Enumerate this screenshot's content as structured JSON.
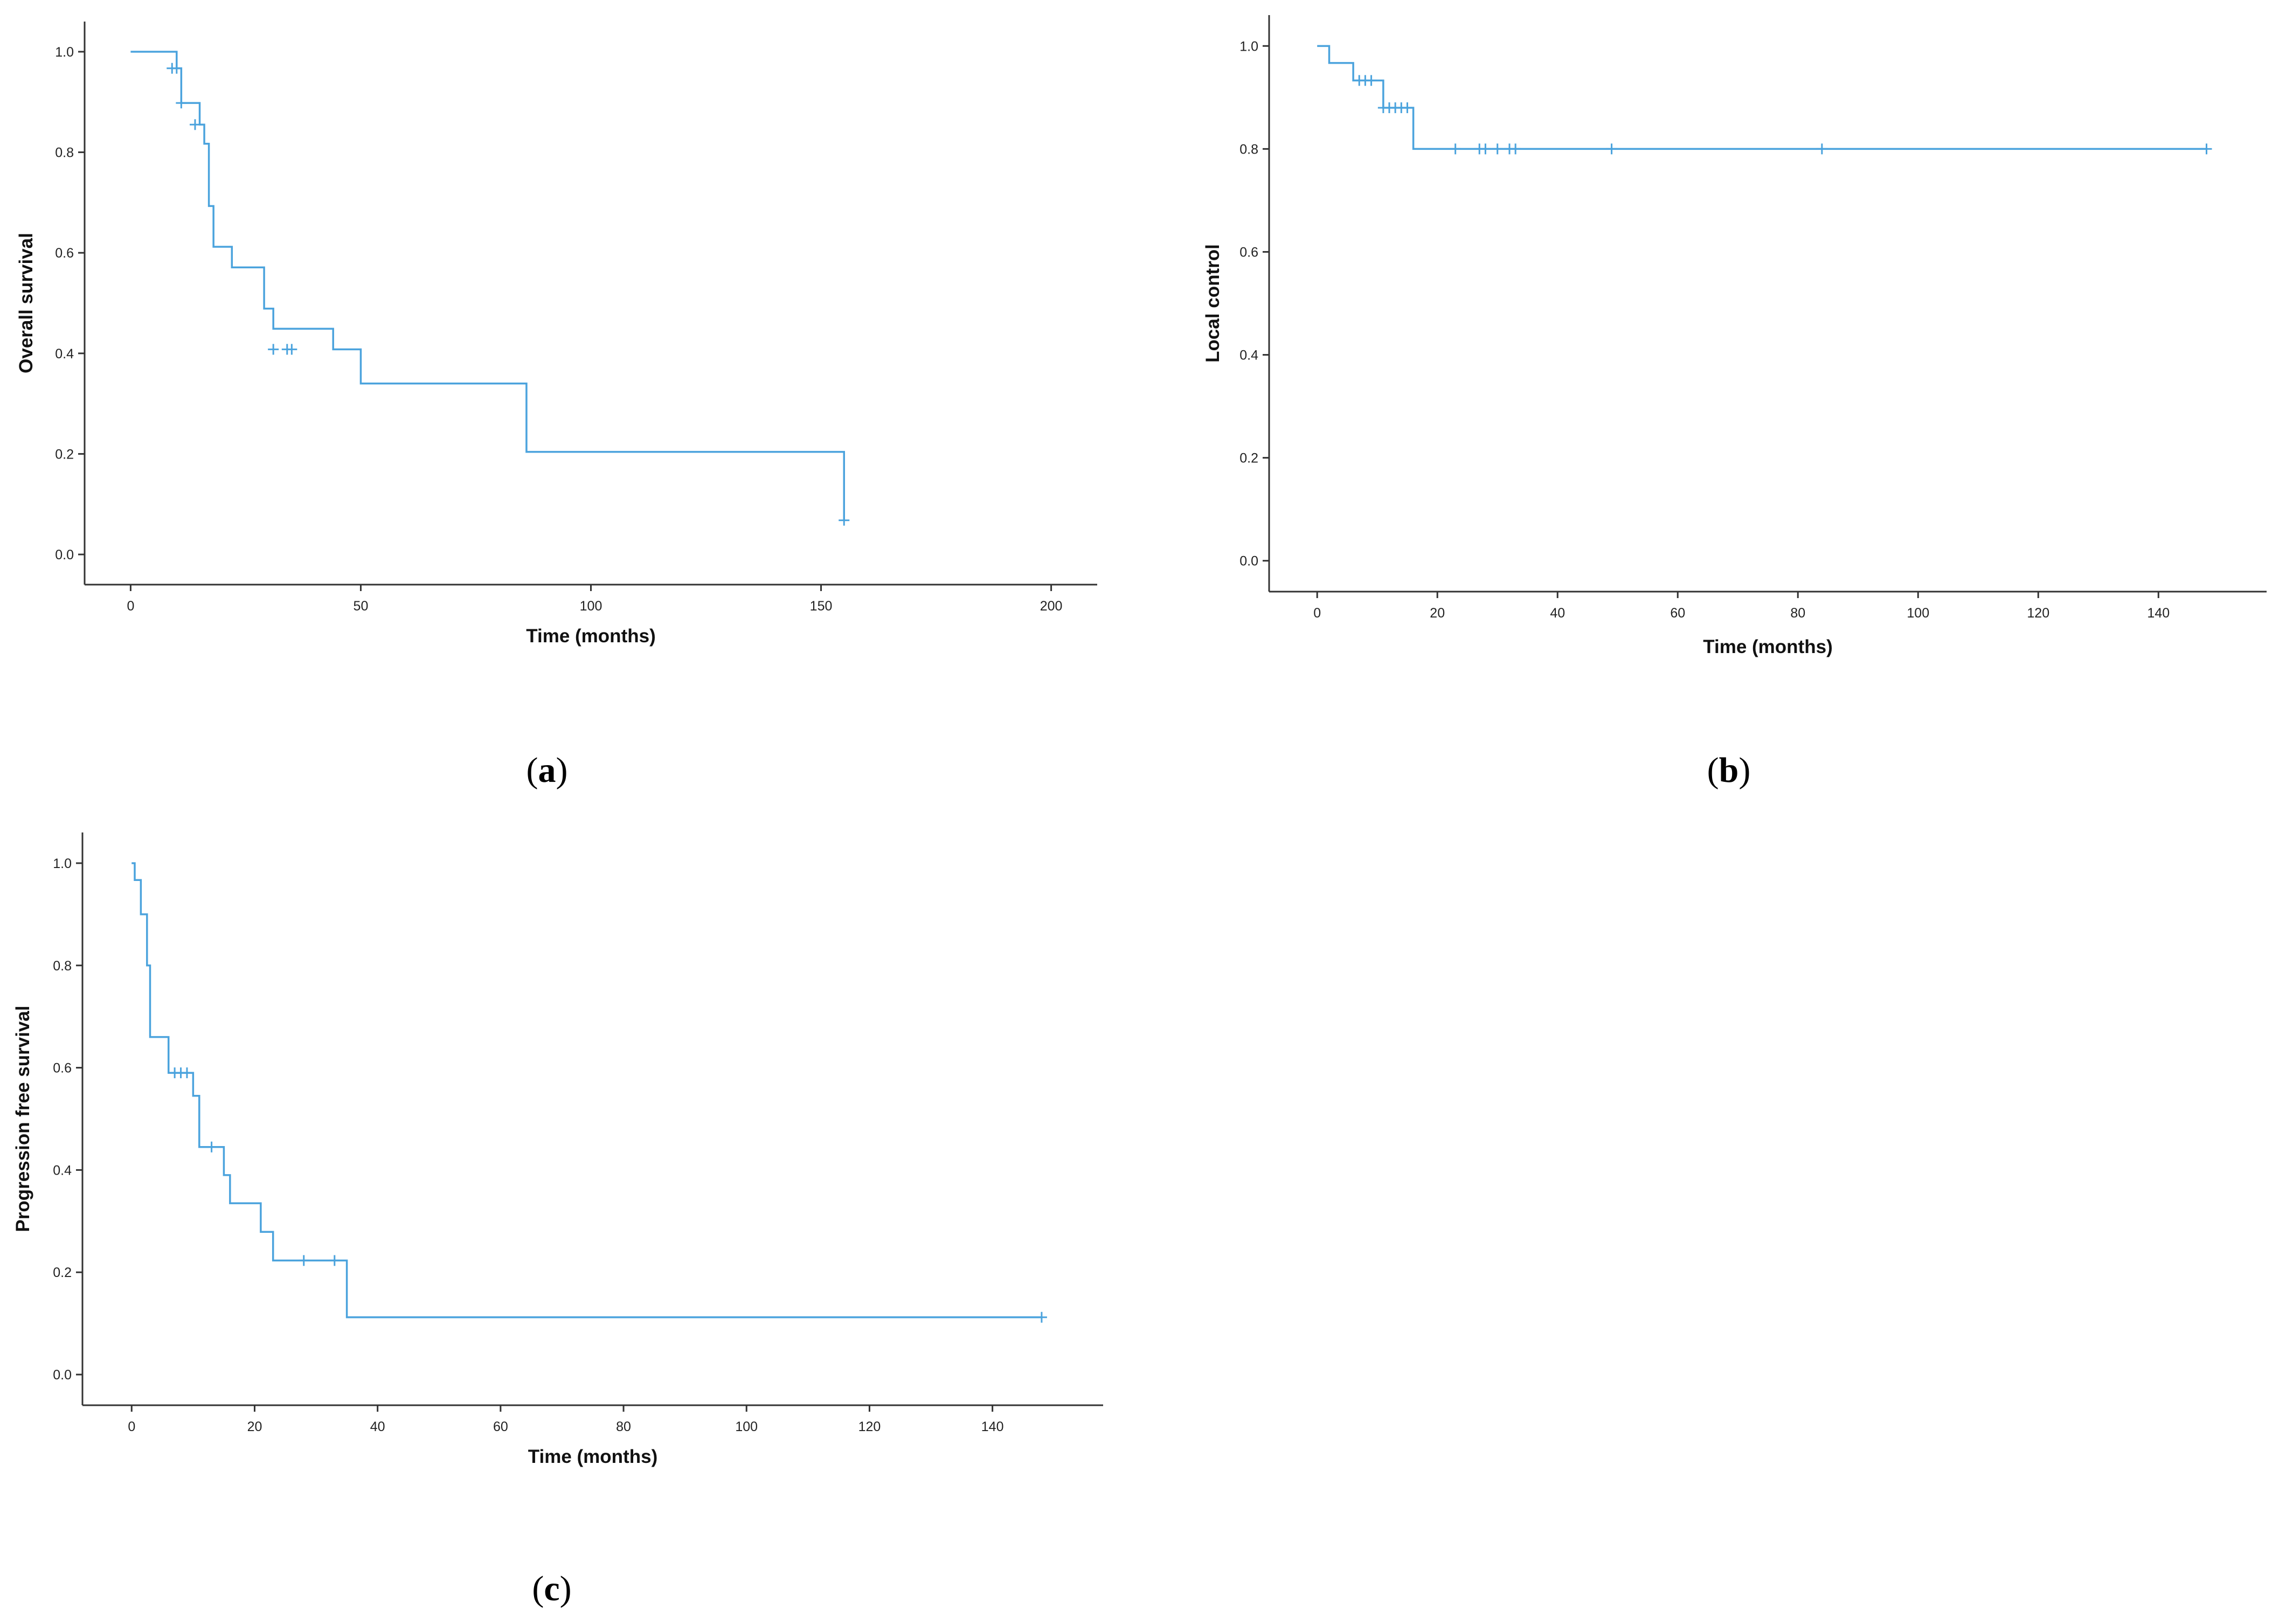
{
  "style": {
    "curve_color": "#4ba3dd",
    "axis_color": "#333333",
    "background": "#ffffff"
  },
  "chart_data": [
    {
      "id": "a",
      "type": "line",
      "panel_label": "a",
      "xlabel": "Time (months)",
      "ylabel": "Overall survival",
      "xlim": [
        -10,
        210
      ],
      "ylim": [
        -0.06,
        1.06
      ],
      "xticks": [
        0,
        50,
        100,
        150,
        200
      ],
      "xtick_labels": [
        "0",
        "50",
        "100",
        "150",
        "200"
      ],
      "yticks": [
        0,
        0.2,
        0.4,
        0.6,
        0.8,
        1.0
      ],
      "ytick_labels": [
        "0.0",
        "0.2",
        "0.4",
        "0.6",
        "0.8",
        "1.0"
      ],
      "grid": false,
      "legend": "none",
      "series": [
        {
          "step_times": [
            0,
            10,
            11,
            15,
            16,
            17,
            18,
            22,
            29,
            31,
            44,
            50,
            86,
            155
          ],
          "step_values": [
            1.0,
            0.967,
            0.898,
            0.855,
            0.817,
            0.693,
            0.612,
            0.571,
            0.489,
            0.449,
            0.408,
            0.34,
            0.204,
            0.068
          ],
          "censored": [
            [
              9,
              0.967
            ],
            [
              10,
              0.967
            ],
            [
              11,
              0.898
            ],
            [
              14,
              0.855
            ],
            [
              31,
              0.408
            ],
            [
              34,
              0.408
            ],
            [
              35,
              0.408
            ],
            [
              155,
              0.068
            ]
          ]
        }
      ]
    },
    {
      "id": "b",
      "type": "line",
      "panel_label": "b",
      "xlabel": "Time (months)",
      "ylabel": "Local control",
      "xlim": [
        -8,
        158
      ],
      "ylim": [
        -0.06,
        1.06
      ],
      "xticks": [
        0,
        20,
        40,
        60,
        80,
        100,
        120,
        140
      ],
      "xtick_labels": [
        "0",
        "20",
        "40",
        "60",
        "80",
        "100",
        "120",
        "140"
      ],
      "yticks": [
        0,
        0.2,
        0.4,
        0.6,
        0.8,
        1.0
      ],
      "ytick_labels": [
        "0.0",
        "0.2",
        "0.4",
        "0.6",
        "0.8",
        "1.0"
      ],
      "grid": false,
      "legend": "none",
      "series": [
        {
          "step_times": [
            0,
            2,
            6,
            11,
            16,
            148
          ],
          "step_values": [
            1.0,
            0.967,
            0.933,
            0.88,
            0.8,
            0.8
          ],
          "censored": [
            [
              7,
              0.933
            ],
            [
              8,
              0.933
            ],
            [
              9,
              0.933
            ],
            [
              11,
              0.88
            ],
            [
              12,
              0.88
            ],
            [
              13,
              0.88
            ],
            [
              14,
              0.88
            ],
            [
              15,
              0.88
            ],
            [
              23,
              0.8
            ],
            [
              27,
              0.8
            ],
            [
              28,
              0.8
            ],
            [
              30,
              0.8
            ],
            [
              32,
              0.8
            ],
            [
              33,
              0.8
            ],
            [
              49,
              0.8
            ],
            [
              84,
              0.8
            ],
            [
              148,
              0.8
            ]
          ]
        }
      ]
    },
    {
      "id": "c",
      "type": "line",
      "panel_label": "c",
      "xlabel": "Time (months)",
      "ylabel": "Progression free survival",
      "xlim": [
        -8,
        158
      ],
      "ylim": [
        -0.06,
        1.06
      ],
      "xticks": [
        0,
        20,
        40,
        60,
        80,
        100,
        120,
        140
      ],
      "xtick_labels": [
        "0",
        "20",
        "40",
        "60",
        "80",
        "100",
        "120",
        "140"
      ],
      "yticks": [
        0,
        0.2,
        0.4,
        0.6,
        0.8,
        1.0
      ],
      "ytick_labels": [
        "0.0",
        "0.2",
        "0.4",
        "0.6",
        "0.8",
        "1.0"
      ],
      "grid": false,
      "legend": "none",
      "series": [
        {
          "step_times": [
            0,
            0.5,
            1.5,
            2.5,
            3,
            6,
            10,
            11,
            15,
            16,
            21,
            23,
            35,
            148
          ],
          "step_values": [
            1.0,
            0.967,
            0.9,
            0.8,
            0.66,
            0.59,
            0.545,
            0.445,
            0.39,
            0.335,
            0.279,
            0.223,
            0.112,
            0.112
          ],
          "censored": [
            [
              7,
              0.59
            ],
            [
              8,
              0.59
            ],
            [
              9,
              0.59
            ],
            [
              13,
              0.445
            ],
            [
              28,
              0.223
            ],
            [
              33,
              0.223
            ],
            [
              148,
              0.112
            ]
          ]
        }
      ]
    }
  ]
}
